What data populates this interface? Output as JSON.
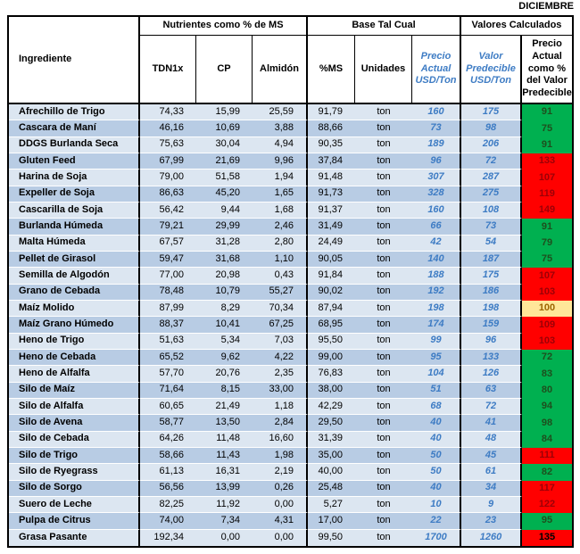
{
  "month_label": "DICIEMBRE",
  "table": {
    "groups": {
      "nutrients": "Nutrientes como % de MS",
      "as_fed": "Base Tal Cual",
      "calculated": "Valores Calculados"
    },
    "columns": {
      "ingredient": "Ingrediente",
      "tdn1x": "TDN1x",
      "cp": "CP",
      "starch": "Almidón",
      "dm": "%MS",
      "units": "Unidades",
      "current_price": "Precio Actual USD/Ton",
      "predicted_value": "Valor Predecible USD/Ton",
      "price_pct": "Precio Actual como % del Valor Predecible"
    },
    "rows": [
      {
        "ingredient": "Afrechillo de Trigo",
        "tdn1x": "74,33",
        "cp": "15,99",
        "starch": "25,59",
        "dm": "91,79",
        "units": "ton",
        "current_price": "160",
        "predicted_value": "175",
        "price_pct": "91",
        "status": "good"
      },
      {
        "ingredient": "Cascara de Maní",
        "tdn1x": "46,16",
        "cp": "10,69",
        "starch": "3,88",
        "dm": "88,66",
        "units": "ton",
        "current_price": "73",
        "predicted_value": "98",
        "price_pct": "75",
        "status": "good"
      },
      {
        "ingredient": "DDGS Burlanda Seca",
        "tdn1x": "75,63",
        "cp": "30,04",
        "starch": "4,94",
        "dm": "90,35",
        "units": "ton",
        "current_price": "189",
        "predicted_value": "206",
        "price_pct": "91",
        "status": "good"
      },
      {
        "ingredient": "Gluten Feed",
        "tdn1x": "67,99",
        "cp": "21,69",
        "starch": "9,96",
        "dm": "37,84",
        "units": "ton",
        "current_price": "96",
        "predicted_value": "72",
        "price_pct": "133",
        "status": "bad"
      },
      {
        "ingredient": "Harina de Soja",
        "tdn1x": "79,00",
        "cp": "51,58",
        "starch": "1,94",
        "dm": "91,48",
        "units": "ton",
        "current_price": "307",
        "predicted_value": "287",
        "price_pct": "107",
        "status": "bad"
      },
      {
        "ingredient": "Expeller de Soja",
        "tdn1x": "86,63",
        "cp": "45,20",
        "starch": "1,65",
        "dm": "91,73",
        "units": "ton",
        "current_price": "328",
        "predicted_value": "275",
        "price_pct": "119",
        "status": "bad"
      },
      {
        "ingredient": "Cascarilla de Soja",
        "tdn1x": "56,42",
        "cp": "9,44",
        "starch": "1,68",
        "dm": "91,37",
        "units": "ton",
        "current_price": "160",
        "predicted_value": "108",
        "price_pct": "149",
        "status": "bad"
      },
      {
        "ingredient": "Burlanda Húmeda",
        "tdn1x": "79,21",
        "cp": "29,99",
        "starch": "2,46",
        "dm": "31,49",
        "units": "ton",
        "current_price": "66",
        "predicted_value": "73",
        "price_pct": "91",
        "status": "good"
      },
      {
        "ingredient": "Malta Húmeda",
        "tdn1x": "67,57",
        "cp": "31,28",
        "starch": "2,80",
        "dm": "24,49",
        "units": "ton",
        "current_price": "42",
        "predicted_value": "54",
        "price_pct": "79",
        "status": "good"
      },
      {
        "ingredient": "Pellet de Girasol",
        "tdn1x": "59,47",
        "cp": "31,68",
        "starch": "1,10",
        "dm": "90,05",
        "units": "ton",
        "current_price": "140",
        "predicted_value": "187",
        "price_pct": "75",
        "status": "good"
      },
      {
        "ingredient": "Semilla de Algodón",
        "tdn1x": "77,00",
        "cp": "20,98",
        "starch": "0,43",
        "dm": "91,84",
        "units": "ton",
        "current_price": "188",
        "predicted_value": "175",
        "price_pct": "107",
        "status": "bad"
      },
      {
        "ingredient": "Grano de Cebada",
        "tdn1x": "78,48",
        "cp": "10,79",
        "starch": "55,27",
        "dm": "90,02",
        "units": "ton",
        "current_price": "192",
        "predicted_value": "186",
        "price_pct": "103",
        "status": "bad"
      },
      {
        "ingredient": "Maíz Molido",
        "tdn1x": "87,99",
        "cp": "8,29",
        "starch": "70,34",
        "dm": "87,94",
        "units": "ton",
        "current_price": "198",
        "predicted_value": "198",
        "price_pct": "100",
        "status": "neutral"
      },
      {
        "ingredient": "Maíz Grano Húmedo",
        "tdn1x": "88,37",
        "cp": "10,41",
        "starch": "67,25",
        "dm": "68,95",
        "units": "ton",
        "current_price": "174",
        "predicted_value": "159",
        "price_pct": "109",
        "status": "bad"
      },
      {
        "ingredient": "Heno de Trigo",
        "tdn1x": "51,63",
        "cp": "5,34",
        "starch": "7,03",
        "dm": "95,50",
        "units": "ton",
        "current_price": "99",
        "predicted_value": "96",
        "price_pct": "103",
        "status": "bad"
      },
      {
        "ingredient": "Heno de Cebada",
        "tdn1x": "65,52",
        "cp": "9,62",
        "starch": "4,22",
        "dm": "99,00",
        "units": "ton",
        "current_price": "95",
        "predicted_value": "133",
        "price_pct": "72",
        "status": "good"
      },
      {
        "ingredient": "Heno de Alfalfa",
        "tdn1x": "57,70",
        "cp": "20,76",
        "starch": "2,35",
        "dm": "76,83",
        "units": "ton",
        "current_price": "104",
        "predicted_value": "126",
        "price_pct": "83",
        "status": "good"
      },
      {
        "ingredient": "Silo de Maíz",
        "tdn1x": "71,64",
        "cp": "8,15",
        "starch": "33,00",
        "dm": "38,00",
        "units": "ton",
        "current_price": "51",
        "predicted_value": "63",
        "price_pct": "80",
        "status": "good"
      },
      {
        "ingredient": "Silo de Alfalfa",
        "tdn1x": "60,65",
        "cp": "21,49",
        "starch": "1,18",
        "dm": "42,29",
        "units": "ton",
        "current_price": "68",
        "predicted_value": "72",
        "price_pct": "94",
        "status": "good"
      },
      {
        "ingredient": "Silo de Avena",
        "tdn1x": "58,77",
        "cp": "13,50",
        "starch": "2,84",
        "dm": "29,50",
        "units": "ton",
        "current_price": "40",
        "predicted_value": "41",
        "price_pct": "98",
        "status": "good"
      },
      {
        "ingredient": "Silo de Cebada",
        "tdn1x": "64,26",
        "cp": "11,48",
        "starch": "16,60",
        "dm": "31,39",
        "units": "ton",
        "current_price": "40",
        "predicted_value": "48",
        "price_pct": "84",
        "status": "good"
      },
      {
        "ingredient": "Silo de Trigo",
        "tdn1x": "58,66",
        "cp": "11,43",
        "starch": "1,98",
        "dm": "35,00",
        "units": "ton",
        "current_price": "50",
        "predicted_value": "45",
        "price_pct": "111",
        "status": "bad"
      },
      {
        "ingredient": "Silo de Ryegrass",
        "tdn1x": "61,13",
        "cp": "16,31",
        "starch": "2,19",
        "dm": "40,00",
        "units": "ton",
        "current_price": "50",
        "predicted_value": "61",
        "price_pct": "82",
        "status": "good"
      },
      {
        "ingredient": "Silo de Sorgo",
        "tdn1x": "56,56",
        "cp": "13,99",
        "starch": "0,26",
        "dm": "25,48",
        "units": "ton",
        "current_price": "40",
        "predicted_value": "34",
        "price_pct": "117",
        "status": "bad"
      },
      {
        "ingredient": "Suero de Leche",
        "tdn1x": "82,25",
        "cp": "11,92",
        "starch": "0,00",
        "dm": "5,27",
        "units": "ton",
        "current_price": "10",
        "predicted_value": "9",
        "price_pct": "122",
        "status": "bad"
      },
      {
        "ingredient": "Pulpa de Citrus",
        "tdn1x": "74,00",
        "cp": "7,34",
        "starch": "4,31",
        "dm": "17,00",
        "units": "ton",
        "current_price": "22",
        "predicted_value": "23",
        "price_pct": "95",
        "status": "good"
      },
      {
        "ingredient": "Grasa Pasante",
        "tdn1x": "192,34",
        "cp": "0,00",
        "starch": "0,00",
        "dm": "99,50",
        "units": "ton",
        "current_price": "1700",
        "predicted_value": "1260",
        "price_pct": "135",
        "status": "bad-bold"
      }
    ]
  },
  "colors": {
    "row_light": "#DCE6F1",
    "row_dark": "#B8CCE4",
    "good_bg": "#00B050",
    "good_text": "#1E4F1E",
    "bad_bg": "#FF0000",
    "bad_text": "#9C0006",
    "neutral_bg": "#FFE699",
    "neutral_text": "#9C6500",
    "accent_blue": "#3E7CC4"
  }
}
